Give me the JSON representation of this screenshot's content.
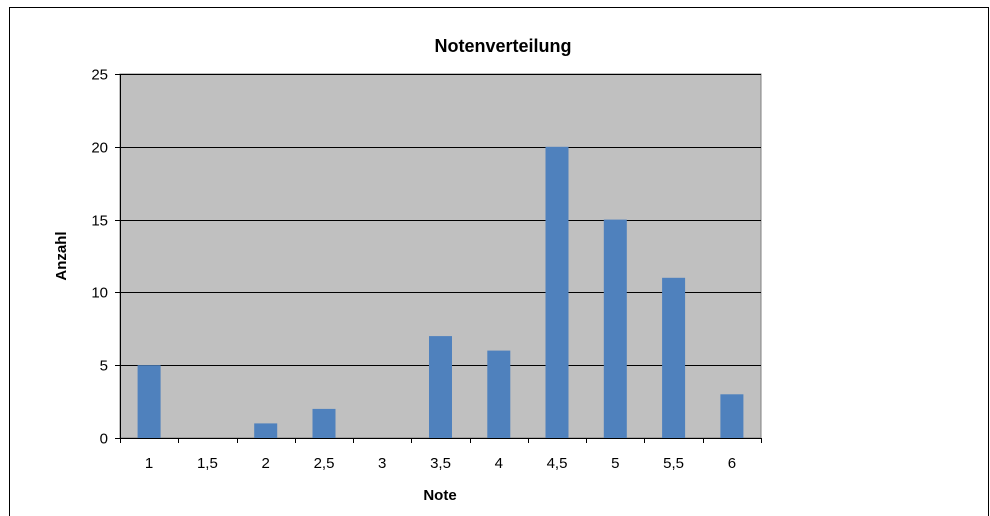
{
  "chart_data": {
    "type": "bar",
    "title": "Notenverteilung",
    "xlabel": "Note",
    "ylabel": "Anzahl",
    "categories": [
      "1",
      "1,5",
      "2",
      "2,5",
      "3",
      "3,5",
      "4",
      "4,5",
      "5",
      "5,5",
      "6"
    ],
    "values": [
      5,
      0,
      1,
      2,
      0,
      7,
      6,
      20,
      15,
      11,
      3
    ],
    "ylim": [
      0,
      25
    ],
    "yticks": [
      "0",
      "5",
      "10",
      "15",
      "20",
      "25"
    ],
    "grid": true,
    "legend": "none",
    "colors": {
      "bar": "#4f81bd",
      "plot_background": "#c0c0c0",
      "gridline": "#000000"
    }
  }
}
